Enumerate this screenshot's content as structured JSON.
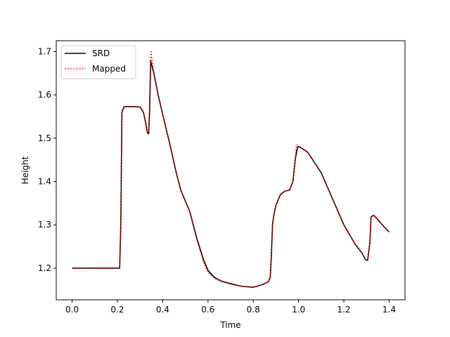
{
  "chart_data": {
    "type": "line",
    "title": "",
    "xlabel": "Time",
    "ylabel": "Height",
    "xlim": [
      -0.07,
      1.47
    ],
    "ylim": [
      1.127,
      1.725
    ],
    "xticks": [
      0.0,
      0.2,
      0.4,
      0.6,
      0.8,
      1.0,
      1.2,
      1.4
    ],
    "xtick_labels": [
      "0.0",
      "0.2",
      "0.4",
      "0.6",
      "0.8",
      "1.0",
      "1.2",
      "1.4"
    ],
    "yticks": [
      1.2,
      1.3,
      1.4,
      1.5,
      1.6,
      1.7
    ],
    "ytick_labels": [
      "1.2",
      "1.3",
      "1.4",
      "1.5",
      "1.6",
      "1.7"
    ],
    "grid": false,
    "legend_position": "top-left",
    "series": [
      {
        "name": "SRD",
        "color": "#000000",
        "style": "solid",
        "x": [
          0.0,
          0.1,
          0.21,
          0.215,
          0.22,
          0.23,
          0.25,
          0.28,
          0.3,
          0.315,
          0.325,
          0.333,
          0.338,
          0.342,
          0.347,
          0.36,
          0.38,
          0.4,
          0.43,
          0.46,
          0.48,
          0.5,
          0.52,
          0.55,
          0.58,
          0.6,
          0.63,
          0.66,
          0.7,
          0.75,
          0.8,
          0.84,
          0.865,
          0.875,
          0.88,
          0.885,
          0.89,
          0.9,
          0.92,
          0.94,
          0.96,
          0.975,
          0.985,
          0.995,
          1.0,
          1.01,
          1.04,
          1.1,
          1.15,
          1.2,
          1.25,
          1.28,
          1.295,
          1.305,
          1.315,
          1.32,
          1.33,
          1.34,
          1.37,
          1.4
        ],
        "y": [
          1.2,
          1.2,
          1.2,
          1.3,
          1.56,
          1.573,
          1.573,
          1.573,
          1.572,
          1.56,
          1.535,
          1.512,
          1.51,
          1.56,
          1.678,
          1.652,
          1.6,
          1.555,
          1.49,
          1.42,
          1.38,
          1.355,
          1.33,
          1.27,
          1.22,
          1.195,
          1.178,
          1.17,
          1.164,
          1.158,
          1.156,
          1.162,
          1.168,
          1.178,
          1.23,
          1.3,
          1.32,
          1.345,
          1.37,
          1.378,
          1.38,
          1.4,
          1.45,
          1.478,
          1.481,
          1.478,
          1.468,
          1.42,
          1.36,
          1.3,
          1.255,
          1.235,
          1.22,
          1.218,
          1.26,
          1.318,
          1.322,
          1.318,
          1.3,
          1.283
        ]
      },
      {
        "name": "Mapped",
        "color": "#ff0000",
        "style": "dotted",
        "x": [
          0.0,
          0.1,
          0.21,
          0.215,
          0.22,
          0.23,
          0.25,
          0.28,
          0.3,
          0.315,
          0.325,
          0.333,
          0.338,
          0.343,
          0.348,
          0.36,
          0.38,
          0.4,
          0.43,
          0.46,
          0.48,
          0.5,
          0.52,
          0.55,
          0.58,
          0.6,
          0.63,
          0.66,
          0.7,
          0.75,
          0.8,
          0.84,
          0.865,
          0.875,
          0.88,
          0.885,
          0.89,
          0.9,
          0.92,
          0.94,
          0.96,
          0.975,
          0.985,
          0.99,
          0.998,
          1.01,
          1.04,
          1.1,
          1.15,
          1.2,
          1.25,
          1.28,
          1.295,
          1.305,
          1.315,
          1.32,
          1.33,
          1.34,
          1.37,
          1.4
        ],
        "y": [
          1.2,
          1.2,
          1.2,
          1.3,
          1.56,
          1.573,
          1.573,
          1.573,
          1.572,
          1.56,
          1.535,
          1.512,
          1.51,
          1.6,
          1.7,
          1.655,
          1.6,
          1.555,
          1.49,
          1.42,
          1.38,
          1.355,
          1.33,
          1.267,
          1.215,
          1.19,
          1.176,
          1.169,
          1.163,
          1.158,
          1.156,
          1.162,
          1.168,
          1.178,
          1.23,
          1.3,
          1.32,
          1.345,
          1.37,
          1.378,
          1.38,
          1.4,
          1.45,
          1.484,
          1.484,
          1.478,
          1.468,
          1.42,
          1.36,
          1.3,
          1.255,
          1.235,
          1.22,
          1.218,
          1.26,
          1.318,
          1.322,
          1.318,
          1.3,
          1.283
        ]
      }
    ]
  }
}
